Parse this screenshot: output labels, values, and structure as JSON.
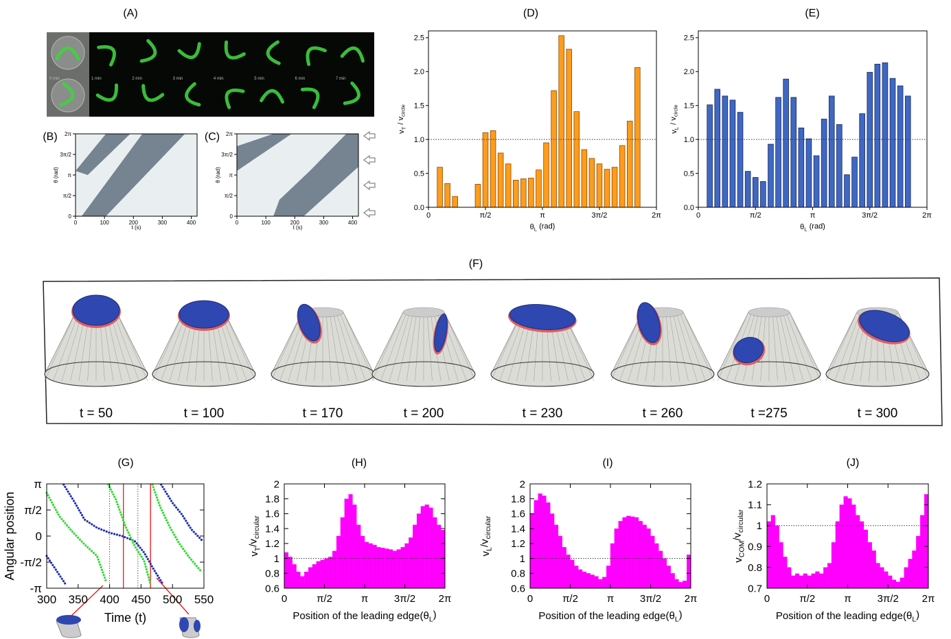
{
  "microscopy": {
    "label": "(A)",
    "times": [
      "0 min",
      "1 min",
      "2 min",
      "3 min",
      "4 min",
      "5 min",
      "6 min",
      "7 min"
    ]
  },
  "simulation": {
    "label": "(F)",
    "frames": [
      "t = 50",
      "t = 100",
      "t = 170",
      "t = 200",
      "t = 230",
      "t = 260",
      "t =275",
      "t = 300"
    ]
  },
  "chart_data": [
    {
      "type": "image",
      "label": "(B)",
      "xlabel": "t (s)",
      "ylabel": "θ (rad)",
      "xlim": [
        0,
        420
      ],
      "ylim": [
        0,
        6.2832
      ],
      "xticks": [
        0,
        100,
        200,
        300,
        400
      ],
      "yticks": [
        0,
        {
          "value": 1.5708,
          "label": "π/2"
        },
        {
          "value": 3.1416,
          "label": "π"
        },
        {
          "value": 4.7124,
          "label": "3π/2"
        },
        {
          "value": 6.2832,
          "label": "2π"
        }
      ]
    },
    {
      "type": "image",
      "label": "(C)",
      "xlabel": "t (s)",
      "ylabel": "θ (rad)",
      "xlim": [
        0,
        420
      ],
      "ylim": [
        0,
        6.2832
      ],
      "xticks": [
        0,
        100,
        200,
        300,
        400
      ],
      "yticks": [
        0,
        {
          "value": 1.5708,
          "label": "π/2"
        },
        {
          "value": 3.1416,
          "label": "π"
        },
        {
          "value": 4.7124,
          "label": "3π/2"
        },
        {
          "value": 6.2832,
          "label": "2π"
        }
      ]
    },
    {
      "type": "histogram",
      "label": "(D)",
      "xlabel": [
        "θ",
        "L",
        " (rad)"
      ],
      "ylabel": [
        "v",
        "T",
        " / v",
        "circle"
      ],
      "bins": [
        0,
        0.2094,
        0.4189,
        0.6283,
        0.8378,
        1.0472,
        1.2566,
        1.4661,
        1.6755,
        1.885,
        2.0944,
        2.3038,
        2.5133,
        2.7227,
        2.9322,
        3.1416,
        3.351,
        3.5605,
        3.7699,
        3.9794,
        4.1888,
        4.3982,
        4.6077,
        4.8171,
        5.0265,
        5.236,
        5.4454,
        5.6549,
        5.8643,
        6.0737,
        6.2832
      ],
      "values": [
        0,
        0.59,
        0.35,
        0.16,
        0,
        0,
        0.34,
        1.1,
        1.13,
        0.8,
        0.64,
        0.4,
        0.42,
        0.43,
        0.55,
        0.95,
        1.72,
        2.53,
        2.33,
        1.41,
        0.85,
        0.72,
        0.64,
        0.56,
        0.59,
        0.91,
        1.27,
        2.06,
        0,
        0
      ],
      "color": "#ff9c1a",
      "edgecolor": "#8a4a08",
      "hline": 1,
      "xlim": [
        0,
        6.2832
      ],
      "ylim": [
        0,
        2.6
      ],
      "xticks": [
        0,
        {
          "value": 1.5708,
          "label": "π/2"
        },
        {
          "value": 3.1416,
          "label": "π"
        },
        {
          "value": 4.7124,
          "label": "3π/2"
        },
        {
          "value": 6.2832,
          "label": "2π"
        }
      ],
      "yticks": [
        {
          "value": 0,
          "label": "0.0"
        },
        0.5,
        {
          "value": 1,
          "label": "1.0"
        },
        1.5,
        {
          "value": 2,
          "label": "2.0"
        },
        2.5
      ]
    },
    {
      "type": "histogram",
      "label": "(E)",
      "xlabel": [
        "θ",
        "L",
        " (rad)"
      ],
      "ylabel": [
        "v",
        "L",
        " / v",
        "circle"
      ],
      "bins": [
        0,
        0.2094,
        0.4189,
        0.6283,
        0.8378,
        1.0472,
        1.2566,
        1.4661,
        1.6755,
        1.885,
        2.0944,
        2.3038,
        2.5133,
        2.7227,
        2.9322,
        3.1416,
        3.351,
        3.5605,
        3.7699,
        3.9794,
        4.1888,
        4.3982,
        4.6077,
        4.8171,
        5.0265,
        5.236,
        5.4454,
        5.6549,
        5.8643,
        6.0737,
        6.2832
      ],
      "values": [
        0,
        1.51,
        1.74,
        1.64,
        1.58,
        1.4,
        0.53,
        0.44,
        0.38,
        0.93,
        1.62,
        1.89,
        1.62,
        1.17,
        1.01,
        0.76,
        1.3,
        1.64,
        1.22,
        0.48,
        0.74,
        1.38,
        1.99,
        2.11,
        2.13,
        1.9,
        1.79,
        1.64,
        0,
        0
      ],
      "color": "#3f67c4",
      "edgecolor": "#1a2a5a",
      "hline": 1,
      "xlim": [
        0,
        6.2832
      ],
      "ylim": [
        0,
        2.6
      ],
      "xticks": [
        0,
        {
          "value": 1.5708,
          "label": "π/2"
        },
        {
          "value": 3.1416,
          "label": "π"
        },
        {
          "value": 4.7124,
          "label": "3π/2"
        },
        {
          "value": 6.2832,
          "label": "2π"
        }
      ],
      "yticks": [
        {
          "value": 0,
          "label": "0.0"
        },
        0.5,
        {
          "value": 1,
          "label": "1.0"
        },
        1.5,
        {
          "value": 2,
          "label": "2.0"
        },
        2.5
      ]
    },
    {
      "type": "line",
      "label": "(G)",
      "xlabel": "Time (t)",
      "ylabel": "Angular position",
      "xlim": [
        300,
        550
      ],
      "ylim": [
        -3.1416,
        3.1416
      ],
      "xticks": [
        300,
        350,
        400,
        450,
        500,
        550
      ],
      "yticks": [
        {
          "value": -3.1416,
          "label": "-π"
        },
        {
          "value": -1.5708,
          "label": "-π/2"
        },
        0,
        {
          "value": 1.5708,
          "label": "π/2"
        },
        {
          "value": 3.1416,
          "label": "π"
        }
      ],
      "series": [
        {
          "color": "#1f2fb5",
          "x": [
            300,
            330,
            null,
            327,
            345,
            360,
            380,
            400,
            420,
            440,
            455,
            470,
            485,
            null,
            482,
            500,
            515,
            530,
            548
          ],
          "values": [
            -1.2,
            -2.9,
            null,
            3.1,
            2.0,
            1.0,
            0.5,
            0.2,
            0.0,
            -0.3,
            -1.0,
            -2.0,
            -2.9,
            null,
            3.1,
            2.0,
            1.3,
            0.4,
            -0.3
          ]
        },
        {
          "color": "#2fdc2f",
          "x": [
            300,
            320,
            340,
            360,
            380,
            395,
            null,
            398,
            410,
            425,
            440,
            455,
            465,
            null,
            468,
            480,
            495,
            510,
            525,
            545
          ],
          "values": [
            2.6,
            1.2,
            0.3,
            -0.5,
            -1.2,
            -2.8,
            null,
            3.1,
            2.2,
            0.6,
            -0.6,
            -1.5,
            -2.9,
            null,
            3.1,
            1.8,
            0.6,
            -0.4,
            -1.2,
            -2.1
          ]
        }
      ],
      "reference_lines": [
        {
          "x": 400,
          "color": "#555555",
          "style": "dotted"
        },
        {
          "x": 445,
          "color": "#555555",
          "style": "dotted"
        },
        {
          "x": 422,
          "color": "#ee1111",
          "style": "solid"
        },
        {
          "x": 465,
          "color": "#ee1111",
          "style": "solid"
        }
      ]
    },
    {
      "type": "histogram",
      "label": "(H)",
      "xlabel": [
        "Position of the leading edge(θ",
        "L",
        ")"
      ],
      "ylabel": [
        "v",
        "T",
        "/v",
        "circular"
      ],
      "bins": [
        0,
        0.1571,
        0.3142,
        0.4712,
        0.6283,
        0.7854,
        0.9425,
        1.0996,
        1.2566,
        1.4137,
        1.5708,
        1.7279,
        1.885,
        2.042,
        2.1991,
        2.3562,
        2.5133,
        2.6704,
        2.8274,
        2.9845,
        3.1416,
        3.2987,
        3.4558,
        3.6128,
        3.7699,
        3.927,
        4.0841,
        4.2412,
        4.3982,
        4.5553,
        4.7124,
        4.8695,
        5.0265,
        5.1836,
        5.3407,
        5.4978,
        5.6549,
        5.8119,
        5.969,
        6.1261,
        6.2832
      ],
      "values": [
        1.08,
        1.02,
        0.92,
        0.82,
        0.76,
        0.82,
        0.88,
        0.92,
        0.96,
        0.98,
        1.0,
        1.02,
        1.1,
        1.3,
        1.55,
        1.8,
        1.86,
        1.72,
        1.45,
        1.3,
        1.22,
        1.2,
        1.18,
        1.15,
        1.14,
        1.13,
        1.12,
        1.1,
        1.12,
        1.15,
        1.2,
        1.28,
        1.45,
        1.6,
        1.7,
        1.72,
        1.68,
        1.55,
        1.45,
        1.38
      ],
      "color": "#ff00ff",
      "hline": 1,
      "xlim": [
        0,
        6.2832
      ],
      "ylim": [
        0.6,
        2
      ],
      "xticks": [
        0,
        {
          "value": 1.5708,
          "label": "π/2"
        },
        {
          "value": 3.1416,
          "label": "π"
        },
        {
          "value": 4.7124,
          "label": "3π/2"
        },
        {
          "value": 6.2832,
          "label": "2π"
        }
      ],
      "yticks": [
        0.6,
        0.8,
        1,
        1.2,
        1.4,
        1.6,
        1.8,
        2
      ]
    },
    {
      "type": "histogram",
      "label": "(I)",
      "xlabel": [
        "Position of the leading edge(θ",
        "L",
        ")"
      ],
      "ylabel": [
        "v",
        "L",
        "/v",
        "circular"
      ],
      "bins": [
        0,
        0.1571,
        0.3142,
        0.4712,
        0.6283,
        0.7854,
        0.9425,
        1.0996,
        1.2566,
        1.4137,
        1.5708,
        1.7279,
        1.885,
        2.042,
        2.1991,
        2.3562,
        2.5133,
        2.6704,
        2.8274,
        2.9845,
        3.1416,
        3.2987,
        3.4558,
        3.6128,
        3.7699,
        3.927,
        4.0841,
        4.2412,
        4.3982,
        4.5553,
        4.7124,
        4.8695,
        5.0265,
        5.1836,
        5.3407,
        5.4978,
        5.6549,
        5.8119,
        5.969,
        6.1261,
        6.2832
      ],
      "values": [
        1.6,
        1.78,
        1.87,
        1.84,
        1.75,
        1.6,
        1.45,
        1.3,
        1.15,
        1.05,
        0.98,
        0.9,
        0.85,
        0.82,
        0.8,
        0.78,
        0.76,
        0.72,
        0.75,
        0.9,
        1.2,
        1.4,
        1.5,
        1.55,
        1.57,
        1.56,
        1.55,
        1.5,
        1.45,
        1.4,
        1.3,
        1.2,
        1.1,
        1.0,
        0.9,
        0.8,
        0.72,
        0.68,
        0.7,
        1.05
      ],
      "color": "#ff00ff",
      "hline": 1,
      "xlim": [
        0,
        6.2832
      ],
      "ylim": [
        0.6,
        2
      ],
      "xticks": [
        0,
        {
          "value": 1.5708,
          "label": "π/2"
        },
        {
          "value": 3.1416,
          "label": "π"
        },
        {
          "value": 4.7124,
          "label": "3π/2"
        },
        {
          "value": 6.2832,
          "label": "2π"
        }
      ],
      "yticks": [
        0.6,
        0.8,
        1,
        1.2,
        1.4,
        1.6,
        1.8,
        2
      ]
    },
    {
      "type": "histogram",
      "label": "(J)",
      "xlabel": [
        "Position of the leading edge(θ",
        "L",
        ")"
      ],
      "ylabel": [
        "v",
        "COM",
        "/v",
        "circular"
      ],
      "bins": [
        0,
        0.1571,
        0.3142,
        0.4712,
        0.6283,
        0.7854,
        0.9425,
        1.0996,
        1.2566,
        1.4137,
        1.5708,
        1.7279,
        1.885,
        2.042,
        2.1991,
        2.3562,
        2.5133,
        2.6704,
        2.8274,
        2.9845,
        3.1416,
        3.2987,
        3.4558,
        3.6128,
        3.7699,
        3.927,
        4.0841,
        4.2412,
        4.3982,
        4.5553,
        4.7124,
        4.8695,
        5.0265,
        5.1836,
        5.3407,
        5.4978,
        5.6549,
        5.8119,
        5.969,
        6.1261,
        6.2832
      ],
      "values": [
        1.02,
        1.05,
        1.0,
        0.92,
        0.85,
        0.8,
        0.76,
        0.77,
        0.76,
        0.77,
        0.76,
        0.77,
        0.78,
        0.77,
        0.8,
        0.82,
        0.92,
        1.02,
        1.1,
        1.14,
        1.13,
        1.1,
        1.05,
        1.02,
        0.98,
        0.92,
        0.88,
        0.82,
        0.8,
        0.78,
        0.76,
        0.74,
        0.73,
        0.75,
        0.8,
        0.84,
        0.88,
        0.95,
        1.05,
        1.15
      ],
      "color": "#ff00ff",
      "hline": 1,
      "xlim": [
        0,
        6.2832
      ],
      "ylim": [
        0.7,
        1.2
      ],
      "xticks": [
        0,
        {
          "value": 1.5708,
          "label": "π/2"
        },
        {
          "value": 3.1416,
          "label": "π"
        },
        {
          "value": 4.7124,
          "label": "3π/2"
        },
        {
          "value": 6.2832,
          "label": "2π"
        }
      ],
      "yticks": [
        0.7,
        0.8,
        0.9,
        1,
        1.1,
        1.2
      ]
    }
  ]
}
